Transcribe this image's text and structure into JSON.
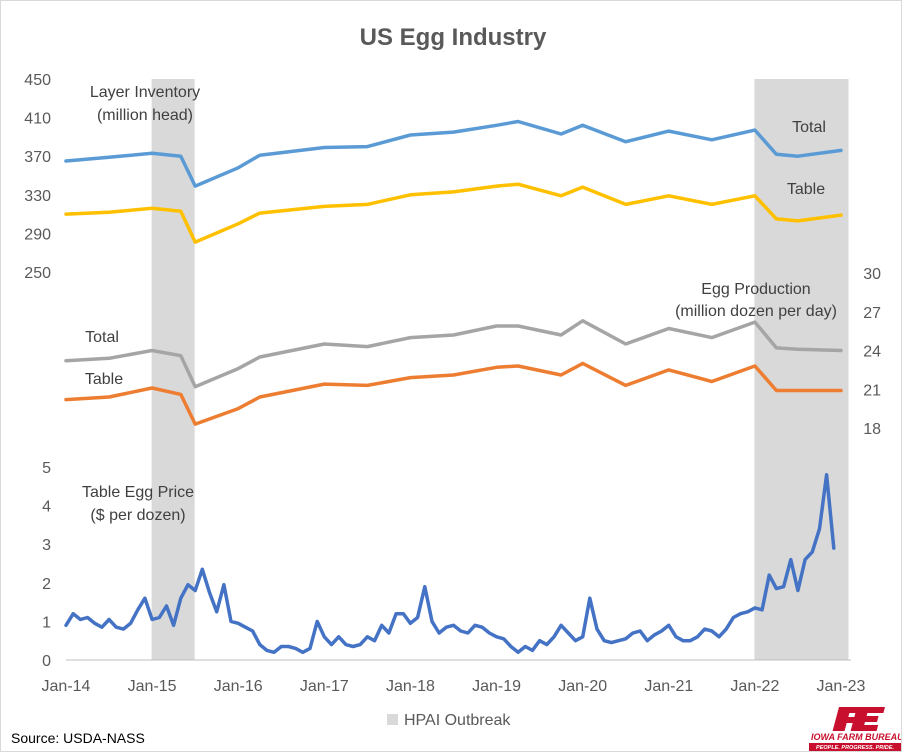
{
  "title": "US Egg Industry",
  "source": "Source: USDA-NASS",
  "legend": {
    "label": "HPAI Outbreak",
    "color": "#d9d9d9"
  },
  "logo": {
    "text": "IOWA FARM BUREAU",
    "tagline": "PEOPLE. PROGRESS. PRIDE.",
    "color": "#c8102e"
  },
  "annotations": {
    "inventory_title_1": "Layer Inventory",
    "inventory_title_2": "(million head)",
    "inventory_total": "Total",
    "inventory_table": "Table",
    "production_title_1": "Egg Production",
    "production_title_2": "(million dozen per day)",
    "production_total": "Total",
    "production_table": "Table",
    "price_title_1": "Table Egg Price",
    "price_title_2": "($ per dozen)"
  },
  "chart_data": {
    "type": "line",
    "title": "US Egg Industry",
    "x_ticks": [
      "Jan-14",
      "Jan-15",
      "Jan-16",
      "Jan-17",
      "Jan-18",
      "Jan-19",
      "Jan-20",
      "Jan-21",
      "Jan-22",
      "Jan-23"
    ],
    "x_range": [
      "Jan-14",
      "Jan-23"
    ],
    "shaded_periods": [
      {
        "label": "HPAI Outbreak",
        "start": "Jan-15",
        "end": "Jul-15"
      },
      {
        "label": "HPAI Outbreak",
        "start": "Jan-22",
        "end": "Jan-23"
      }
    ],
    "panels": [
      {
        "name": "Layer Inventory (million head)",
        "axis": "left",
        "y_ticks": [
          250,
          290,
          330,
          370,
          410,
          450
        ],
        "series": [
          {
            "name": "Total",
            "color": "#5b9bd5",
            "points": [
              [
                "Jan-14",
                365
              ],
              [
                "Jul-14",
                369
              ],
              [
                "Jan-15",
                373
              ],
              [
                "May-15",
                370
              ],
              [
                "Jul-15",
                339
              ],
              [
                "Jan-16",
                358
              ],
              [
                "Apr-16",
                371
              ],
              [
                "Jan-17",
                379
              ],
              [
                "Jul-17",
                380
              ],
              [
                "Jan-18",
                392
              ],
              [
                "Jul-18",
                395
              ],
              [
                "Jan-19",
                402
              ],
              [
                "Apr-19",
                406
              ],
              [
                "Oct-19",
                393
              ],
              [
                "Jan-20",
                402
              ],
              [
                "Jul-20",
                385
              ],
              [
                "Jan-21",
                396
              ],
              [
                "Jul-21",
                387
              ],
              [
                "Jan-22",
                397
              ],
              [
                "Apr-22",
                372
              ],
              [
                "Jul-22",
                370
              ],
              [
                "Jan-23",
                376
              ]
            ]
          },
          {
            "name": "Table",
            "color": "#ffc000",
            "points": [
              [
                "Jan-14",
                310
              ],
              [
                "Jul-14",
                312
              ],
              [
                "Jan-15",
                316
              ],
              [
                "May-15",
                313
              ],
              [
                "Jul-15",
                281
              ],
              [
                "Jan-16",
                300
              ],
              [
                "Apr-16",
                311
              ],
              [
                "Jan-17",
                318
              ],
              [
                "Jul-17",
                320
              ],
              [
                "Jan-18",
                330
              ],
              [
                "Jul-18",
                333
              ],
              [
                "Jan-19",
                339
              ],
              [
                "Apr-19",
                341
              ],
              [
                "Oct-19",
                329
              ],
              [
                "Jan-20",
                338
              ],
              [
                "Jul-20",
                320
              ],
              [
                "Jan-21",
                329
              ],
              [
                "Jul-21",
                320
              ],
              [
                "Jan-22",
                329
              ],
              [
                "Apr-22",
                305
              ],
              [
                "Jul-22",
                303
              ],
              [
                "Jan-23",
                309
              ]
            ]
          }
        ]
      },
      {
        "name": "Egg Production (million dozen per day)",
        "axis": "right",
        "y_ticks": [
          18,
          21,
          24,
          27,
          30
        ],
        "series": [
          {
            "name": "Total",
            "color": "#a5a5a5",
            "points": [
              [
                "Jan-14",
                23.2
              ],
              [
                "Jul-14",
                23.4
              ],
              [
                "Jan-15",
                24.0
              ],
              [
                "May-15",
                23.6
              ],
              [
                "Jul-15",
                21.2
              ],
              [
                "Jan-16",
                22.6
              ],
              [
                "Apr-16",
                23.5
              ],
              [
                "Jan-17",
                24.5
              ],
              [
                "Jul-17",
                24.3
              ],
              [
                "Jan-18",
                25.0
              ],
              [
                "Jul-18",
                25.2
              ],
              [
                "Jan-19",
                25.9
              ],
              [
                "Apr-19",
                25.9
              ],
              [
                "Oct-19",
                25.2
              ],
              [
                "Jan-20",
                26.3
              ],
              [
                "Jul-20",
                24.5
              ],
              [
                "Jan-21",
                25.7
              ],
              [
                "Jul-21",
                25.0
              ],
              [
                "Jan-22",
                26.2
              ],
              [
                "Apr-22",
                24.2
              ],
              [
                "Jul-22",
                24.1
              ],
              [
                "Jan-23",
                24.0
              ]
            ]
          },
          {
            "name": "Table",
            "color": "#ed7d31",
            "points": [
              [
                "Jan-14",
                20.2
              ],
              [
                "Jul-14",
                20.4
              ],
              [
                "Jan-15",
                21.1
              ],
              [
                "May-15",
                20.6
              ],
              [
                "Jul-15",
                18.3
              ],
              [
                "Jan-16",
                19.5
              ],
              [
                "Apr-16",
                20.4
              ],
              [
                "Jan-17",
                21.4
              ],
              [
                "Jul-17",
                21.3
              ],
              [
                "Jan-18",
                21.9
              ],
              [
                "Jul-18",
                22.1
              ],
              [
                "Jan-19",
                22.7
              ],
              [
                "Apr-19",
                22.8
              ],
              [
                "Oct-19",
                22.1
              ],
              [
                "Jan-20",
                23.0
              ],
              [
                "Jul-20",
                21.3
              ],
              [
                "Jan-21",
                22.5
              ],
              [
                "Jul-21",
                21.6
              ],
              [
                "Jan-22",
                22.8
              ],
              [
                "Apr-22",
                20.9
              ],
              [
                "Jul-22",
                20.9
              ],
              [
                "Jan-23",
                20.9
              ]
            ]
          }
        ]
      },
      {
        "name": "Table Egg Price ($ per dozen)",
        "axis": "left",
        "y_ticks": [
          0,
          1,
          2,
          3,
          4,
          5
        ],
        "series": [
          {
            "name": "Table Egg Price",
            "color": "#4472c4",
            "points": [
              [
                "Jan-14",
                0.9
              ],
              [
                "Feb-14",
                1.2
              ],
              [
                "Mar-14",
                1.05
              ],
              [
                "Apr-14",
                1.1
              ],
              [
                "May-14",
                0.95
              ],
              [
                "Jun-14",
                0.85
              ],
              [
                "Jul-14",
                1.05
              ],
              [
                "Aug-14",
                0.85
              ],
              [
                "Sep-14",
                0.8
              ],
              [
                "Oct-14",
                0.95
              ],
              [
                "Nov-14",
                1.3
              ],
              [
                "Dec-14",
                1.6
              ],
              [
                "Jan-15",
                1.05
              ],
              [
                "Feb-15",
                1.1
              ],
              [
                "Mar-15",
                1.4
              ],
              [
                "Apr-15",
                0.9
              ],
              [
                "May-15",
                1.6
              ],
              [
                "Jun-15",
                1.95
              ],
              [
                "Jul-15",
                1.8
              ],
              [
                "Aug-15",
                2.35
              ],
              [
                "Sep-15",
                1.75
              ],
              [
                "Oct-15",
                1.25
              ],
              [
                "Nov-15",
                1.95
              ],
              [
                "Dec-15",
                1.0
              ],
              [
                "Jan-16",
                0.95
              ],
              [
                "Feb-16",
                0.85
              ],
              [
                "Mar-16",
                0.75
              ],
              [
                "Apr-16",
                0.4
              ],
              [
                "May-16",
                0.25
              ],
              [
                "Jun-16",
                0.2
              ],
              [
                "Jul-16",
                0.35
              ],
              [
                "Aug-16",
                0.35
              ],
              [
                "Sep-16",
                0.3
              ],
              [
                "Oct-16",
                0.2
              ],
              [
                "Nov-16",
                0.3
              ],
              [
                "Dec-16",
                1.0
              ],
              [
                "Jan-17",
                0.6
              ],
              [
                "Feb-17",
                0.4
              ],
              [
                "Mar-17",
                0.6
              ],
              [
                "Apr-17",
                0.4
              ],
              [
                "May-17",
                0.35
              ],
              [
                "Jun-17",
                0.4
              ],
              [
                "Jul-17",
                0.6
              ],
              [
                "Aug-17",
                0.5
              ],
              [
                "Sep-17",
                0.9
              ],
              [
                "Oct-17",
                0.7
              ],
              [
                "Nov-17",
                1.2
              ],
              [
                "Dec-17",
                1.2
              ],
              [
                "Jan-18",
                0.95
              ],
              [
                "Feb-18",
                1.1
              ],
              [
                "Mar-18",
                1.9
              ],
              [
                "Apr-18",
                1.0
              ],
              [
                "May-18",
                0.7
              ],
              [
                "Jun-18",
                0.85
              ],
              [
                "Jul-18",
                0.9
              ],
              [
                "Aug-18",
                0.75
              ],
              [
                "Sep-18",
                0.7
              ],
              [
                "Oct-18",
                0.9
              ],
              [
                "Nov-18",
                0.85
              ],
              [
                "Dec-18",
                0.7
              ],
              [
                "Jan-19",
                0.6
              ],
              [
                "Feb-19",
                0.55
              ],
              [
                "Mar-19",
                0.35
              ],
              [
                "Apr-19",
                0.2
              ],
              [
                "May-19",
                0.35
              ],
              [
                "Jun-19",
                0.25
              ],
              [
                "Jul-19",
                0.5
              ],
              [
                "Aug-19",
                0.4
              ],
              [
                "Sep-19",
                0.6
              ],
              [
                "Oct-19",
                0.9
              ],
              [
                "Nov-19",
                0.7
              ],
              [
                "Dec-19",
                0.5
              ],
              [
                "Jan-20",
                0.6
              ],
              [
                "Feb-20",
                1.6
              ],
              [
                "Mar-20",
                0.8
              ],
              [
                "Apr-20",
                0.5
              ],
              [
                "May-20",
                0.45
              ],
              [
                "Jun-20",
                0.5
              ],
              [
                "Jul-20",
                0.55
              ],
              [
                "Aug-20",
                0.7
              ],
              [
                "Sep-20",
                0.75
              ],
              [
                "Oct-20",
                0.5
              ],
              [
                "Nov-20",
                0.65
              ],
              [
                "Dec-20",
                0.75
              ],
              [
                "Jan-21",
                0.9
              ],
              [
                "Feb-21",
                0.6
              ],
              [
                "Mar-21",
                0.5
              ],
              [
                "Apr-21",
                0.5
              ],
              [
                "May-21",
                0.6
              ],
              [
                "Jun-21",
                0.8
              ],
              [
                "Jul-21",
                0.75
              ],
              [
                "Aug-21",
                0.6
              ],
              [
                "Sep-21",
                0.8
              ],
              [
                "Oct-21",
                1.1
              ],
              [
                "Nov-21",
                1.2
              ],
              [
                "Dec-21",
                1.25
              ],
              [
                "Jan-22",
                1.35
              ],
              [
                "Feb-22",
                1.3
              ],
              [
                "Mar-22",
                2.2
              ],
              [
                "Apr-22",
                1.85
              ],
              [
                "May-22",
                1.9
              ],
              [
                "Jun-22",
                2.6
              ],
              [
                "Jul-22",
                1.8
              ],
              [
                "Aug-22",
                2.6
              ],
              [
                "Sep-22",
                2.8
              ],
              [
                "Oct-22",
                3.4
              ],
              [
                "Nov-22",
                4.8
              ],
              [
                "Dec-22",
                2.9
              ]
            ]
          }
        ]
      }
    ],
    "legend": {
      "entries": [
        "HPAI Outbreak"
      ],
      "position": "bottom"
    },
    "grid": false
  }
}
